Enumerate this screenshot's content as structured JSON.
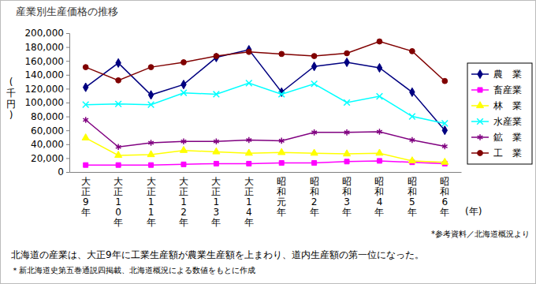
{
  "chart_data": {
    "type": "line",
    "title": "産業別生産価格の推移",
    "y_label": "(千円)",
    "x_label": "(年)",
    "categories": [
      "大正9年",
      "大正10年",
      "大正11年",
      "大正12年",
      "大正13年",
      "大正14年",
      "昭和元年",
      "昭和2年",
      "昭和3年",
      "昭和4年",
      "昭和5年",
      "昭和6年"
    ],
    "series": [
      {
        "name": "農　業",
        "color": "#000080",
        "marker": "diamond",
        "values": [
          122000,
          157000,
          111000,
          126000,
          165000,
          176000,
          115000,
          152000,
          158000,
          150000,
          115000,
          60000
        ]
      },
      {
        "name": "畜産業",
        "color": "#ff00ff",
        "marker": "square",
        "values": [
          10000,
          10000,
          10000,
          11000,
          12000,
          12000,
          13000,
          13000,
          15000,
          16000,
          14000,
          12000
        ]
      },
      {
        "name": "林　業",
        "color": "#ffff00",
        "marker": "triangle",
        "values": [
          49000,
          24000,
          25000,
          31000,
          29000,
          27000,
          28000,
          27000,
          26000,
          27000,
          16000,
          14000
        ]
      },
      {
        "name": "水産業",
        "color": "#00ffff",
        "marker": "x",
        "values": [
          97000,
          98000,
          97000,
          114000,
          112000,
          128000,
          112000,
          127000,
          100000,
          109000,
          80000,
          70000
        ]
      },
      {
        "name": "鉱　業",
        "color": "#800080",
        "marker": "asterisk",
        "values": [
          75000,
          36000,
          42000,
          44000,
          44000,
          46000,
          45000,
          57000,
          57000,
          58000,
          46000,
          37000
        ]
      },
      {
        "name": "工　業",
        "color": "#800000",
        "marker": "circle",
        "values": [
          151000,
          132000,
          151000,
          158000,
          167000,
          173000,
          170000,
          167000,
          171000,
          188000,
          174000,
          131000
        ]
      }
    ],
    "ylim": [
      0,
      200000
    ],
    "yticks": [
      0,
      {
        "value": 20000,
        "label": "20,000"
      },
      {
        "value": 40000,
        "label": "40,000"
      },
      {
        "value": 60000,
        "label": "60,000"
      },
      {
        "value": 80000,
        "label": "80,000"
      },
      {
        "value": 100000,
        "label": "100,000"
      },
      {
        "value": 120000,
        "label": "120,000"
      },
      {
        "value": 140000,
        "label": "140,000"
      },
      {
        "value": 160000,
        "label": "160,000"
      },
      {
        "value": 180000,
        "label": "180,000"
      },
      {
        "value": 200000,
        "label": "200,000"
      }
    ],
    "grid": false,
    "legend": "right",
    "annotations": [
      "*参考資料／北海道概況より",
      "北海道の産業は、大正9年に工業生産額が農業生産額を上まわり、道内生産額の第一位になった。",
      "＊新北海道史第五巻通説四掲載、北海道概況による数値をもとに作成"
    ]
  }
}
